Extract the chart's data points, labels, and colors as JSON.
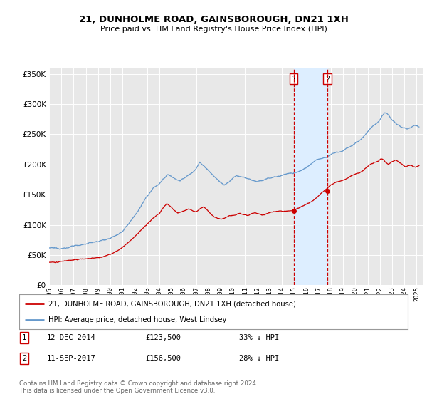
{
  "title": "21, DUNHOLME ROAD, GAINSBOROUGH, DN21 1XH",
  "subtitle": "Price paid vs. HM Land Registry's House Price Index (HPI)",
  "legend_line1": "21, DUNHOLME ROAD, GAINSBOROUGH, DN21 1XH (detached house)",
  "legend_line2": "HPI: Average price, detached house, West Lindsey",
  "annotation1_label": "1",
  "annotation1_date": "12-DEC-2014",
  "annotation1_price": "£123,500",
  "annotation1_pct": "33% ↓ HPI",
  "annotation2_label": "2",
  "annotation2_date": "11-SEP-2017",
  "annotation2_price": "£156,500",
  "annotation2_pct": "28% ↓ HPI",
  "footer": "Contains HM Land Registry data © Crown copyright and database right 2024.\nThis data is licensed under the Open Government Licence v3.0.",
  "red_color": "#cc0000",
  "blue_color": "#6699cc",
  "shade_color": "#ddeeff",
  "grid_color": "#ffffff",
  "bg_color": "#e8e8e8",
  "vline_color": "#cc0000",
  "purchase1_date_num": 2014.958,
  "purchase1_value": 123500,
  "purchase2_date_num": 2017.708,
  "purchase2_value": 156500,
  "ylim": [
    0,
    360000
  ],
  "xlim_start": 1995.0,
  "xlim_end": 2025.5,
  "hpi_anchors": [
    [
      1995.0,
      62000
    ],
    [
      1995.5,
      60000
    ],
    [
      1996.0,
      61000
    ],
    [
      1996.5,
      63000
    ],
    [
      1997.0,
      65000
    ],
    [
      1997.5,
      67000
    ],
    [
      1998.0,
      69000
    ],
    [
      1998.5,
      71000
    ],
    [
      1999.0,
      73000
    ],
    [
      1999.5,
      76000
    ],
    [
      2000.0,
      80000
    ],
    [
      2000.5,
      87000
    ],
    [
      2001.0,
      93000
    ],
    [
      2001.5,
      105000
    ],
    [
      2002.0,
      118000
    ],
    [
      2002.5,
      133000
    ],
    [
      2003.0,
      148000
    ],
    [
      2003.5,
      162000
    ],
    [
      2004.0,
      170000
    ],
    [
      2004.3,
      178000
    ],
    [
      2004.7,
      185000
    ],
    [
      2005.0,
      182000
    ],
    [
      2005.3,
      178000
    ],
    [
      2005.7,
      175000
    ],
    [
      2006.0,
      178000
    ],
    [
      2006.3,
      183000
    ],
    [
      2006.7,
      188000
    ],
    [
      2007.0,
      195000
    ],
    [
      2007.3,
      205000
    ],
    [
      2007.6,
      200000
    ],
    [
      2008.0,
      192000
    ],
    [
      2008.3,
      186000
    ],
    [
      2008.7,
      178000
    ],
    [
      2009.0,
      172000
    ],
    [
      2009.3,
      168000
    ],
    [
      2009.7,
      173000
    ],
    [
      2010.0,
      178000
    ],
    [
      2010.3,
      182000
    ],
    [
      2010.7,
      180000
    ],
    [
      2011.0,
      178000
    ],
    [
      2011.3,
      175000
    ],
    [
      2011.7,
      173000
    ],
    [
      2012.0,
      172000
    ],
    [
      2012.3,
      173000
    ],
    [
      2012.7,
      175000
    ],
    [
      2013.0,
      177000
    ],
    [
      2013.3,
      178000
    ],
    [
      2013.7,
      181000
    ],
    [
      2014.0,
      183000
    ],
    [
      2014.3,
      185000
    ],
    [
      2014.7,
      186000
    ],
    [
      2014.958,
      185000
    ],
    [
      2015.0,
      187000
    ],
    [
      2015.3,
      190000
    ],
    [
      2015.7,
      194000
    ],
    [
      2016.0,
      198000
    ],
    [
      2016.3,
      202000
    ],
    [
      2016.7,
      207000
    ],
    [
      2017.0,
      210000
    ],
    [
      2017.3,
      213000
    ],
    [
      2017.708,
      217000
    ],
    [
      2018.0,
      222000
    ],
    [
      2018.3,
      225000
    ],
    [
      2018.7,
      228000
    ],
    [
      2019.0,
      230000
    ],
    [
      2019.3,
      233000
    ],
    [
      2019.7,
      236000
    ],
    [
      2020.0,
      238000
    ],
    [
      2020.3,
      242000
    ],
    [
      2020.7,
      250000
    ],
    [
      2021.0,
      258000
    ],
    [
      2021.3,
      265000
    ],
    [
      2021.7,
      272000
    ],
    [
      2022.0,
      278000
    ],
    [
      2022.2,
      285000
    ],
    [
      2022.4,
      290000
    ],
    [
      2022.6,
      288000
    ],
    [
      2022.8,
      283000
    ],
    [
      2023.0,
      278000
    ],
    [
      2023.3,
      272000
    ],
    [
      2023.6,
      268000
    ],
    [
      2023.9,
      265000
    ],
    [
      2024.2,
      263000
    ],
    [
      2024.5,
      265000
    ],
    [
      2024.8,
      268000
    ],
    [
      2025.2,
      265000
    ]
  ],
  "red_anchors": [
    [
      1995.0,
      38000
    ],
    [
      1995.5,
      37000
    ],
    [
      1996.0,
      38500
    ],
    [
      1996.5,
      39000
    ],
    [
      1997.0,
      40000
    ],
    [
      1997.5,
      41000
    ],
    [
      1998.0,
      42000
    ],
    [
      1998.5,
      43000
    ],
    [
      1999.0,
      44000
    ],
    [
      1999.5,
      46000
    ],
    [
      2000.0,
      49000
    ],
    [
      2000.5,
      54000
    ],
    [
      2001.0,
      60000
    ],
    [
      2001.5,
      68000
    ],
    [
      2002.0,
      77000
    ],
    [
      2002.5,
      87000
    ],
    [
      2003.0,
      97000
    ],
    [
      2003.5,
      107000
    ],
    [
      2004.0,
      115000
    ],
    [
      2004.3,
      125000
    ],
    [
      2004.6,
      132000
    ],
    [
      2004.9,
      128000
    ],
    [
      2005.2,
      122000
    ],
    [
      2005.5,
      118000
    ],
    [
      2005.8,
      120000
    ],
    [
      2006.1,
      122000
    ],
    [
      2006.4,
      125000
    ],
    [
      2006.7,
      122000
    ],
    [
      2007.0,
      120000
    ],
    [
      2007.3,
      125000
    ],
    [
      2007.6,
      128000
    ],
    [
      2007.9,
      122000
    ],
    [
      2008.2,
      115000
    ],
    [
      2008.5,
      110000
    ],
    [
      2008.8,
      108000
    ],
    [
      2009.1,
      107000
    ],
    [
      2009.4,
      109000
    ],
    [
      2009.7,
      112000
    ],
    [
      2010.0,
      114000
    ],
    [
      2010.3,
      116000
    ],
    [
      2010.6,
      118000
    ],
    [
      2010.9,
      115000
    ],
    [
      2011.2,
      113000
    ],
    [
      2011.5,
      115000
    ],
    [
      2011.8,
      117000
    ],
    [
      2012.1,
      115000
    ],
    [
      2012.4,
      113000
    ],
    [
      2012.7,
      115000
    ],
    [
      2013.0,
      117000
    ],
    [
      2013.3,
      118000
    ],
    [
      2013.6,
      119000
    ],
    [
      2013.9,
      120000
    ],
    [
      2014.0,
      120000
    ],
    [
      2014.4,
      121000
    ],
    [
      2014.7,
      122000
    ],
    [
      2014.958,
      123500
    ],
    [
      2015.2,
      125000
    ],
    [
      2015.5,
      127000
    ],
    [
      2015.8,
      130000
    ],
    [
      2016.1,
      133000
    ],
    [
      2016.4,
      136000
    ],
    [
      2016.7,
      140000
    ],
    [
      2017.0,
      145000
    ],
    [
      2017.3,
      150000
    ],
    [
      2017.708,
      156500
    ],
    [
      2018.0,
      162000
    ],
    [
      2018.3,
      165000
    ],
    [
      2018.6,
      168000
    ],
    [
      2018.9,
      170000
    ],
    [
      2019.2,
      172000
    ],
    [
      2019.5,
      175000
    ],
    [
      2019.8,
      178000
    ],
    [
      2020.1,
      180000
    ],
    [
      2020.4,
      183000
    ],
    [
      2020.7,
      187000
    ],
    [
      2021.0,
      192000
    ],
    [
      2021.3,
      197000
    ],
    [
      2021.6,
      200000
    ],
    [
      2021.9,
      202000
    ],
    [
      2022.1,
      205000
    ],
    [
      2022.3,
      203000
    ],
    [
      2022.5,
      198000
    ],
    [
      2022.7,
      195000
    ],
    [
      2022.9,
      198000
    ],
    [
      2023.1,
      200000
    ],
    [
      2023.3,
      202000
    ],
    [
      2023.5,
      198000
    ],
    [
      2023.7,
      195000
    ],
    [
      2023.9,
      192000
    ],
    [
      2024.1,
      190000
    ],
    [
      2024.3,
      192000
    ],
    [
      2024.5,
      194000
    ],
    [
      2024.7,
      192000
    ],
    [
      2024.9,
      190000
    ],
    [
      2025.2,
      192000
    ]
  ]
}
